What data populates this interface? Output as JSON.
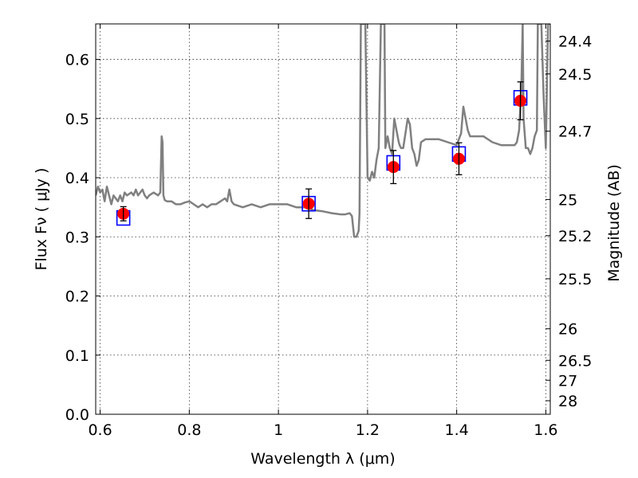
{
  "chart_data": {
    "type": "scatter",
    "xlabel": "Wavelength  λ (μm)",
    "ylabel": "Flux  Fν  ( μJy )",
    "ylabel_right": "Magnitude (AB)",
    "xlim": [
      0.59,
      1.61
    ],
    "ylim": [
      0.0,
      0.66
    ],
    "grid": true,
    "x_ticks": [
      "0.6",
      "0.8",
      "1",
      "1.2",
      "1.4",
      "1.6"
    ],
    "y_ticks": [
      "0.0",
      "0.1",
      "0.2",
      "0.3",
      "0.4",
      "0.5",
      "0.6"
    ],
    "right_ticks": [
      {
        "label": "24.4",
        "mag": 24.4
      },
      {
        "label": "24.5",
        "mag": 24.5
      },
      {
        "label": "24.7",
        "mag": 24.7
      },
      {
        "label": "25",
        "mag": 25.0
      },
      {
        "label": "25.2",
        "mag": 25.2
      },
      {
        "label": "25.5",
        "mag": 25.5
      },
      {
        "label": "26",
        "mag": 26.0
      },
      {
        "label": "26.5",
        "mag": 26.5
      },
      {
        "label": "27",
        "mag": 27.0
      },
      {
        "label": "28",
        "mag": 28.0
      }
    ],
    "series": [
      {
        "style": "model-line",
        "color": "#808080",
        "x": [
          0.59,
          0.595,
          0.6,
          0.605,
          0.61,
          0.615,
          0.62,
          0.625,
          0.63,
          0.635,
          0.64,
          0.645,
          0.65,
          0.655,
          0.66,
          0.67,
          0.675,
          0.68,
          0.685,
          0.69,
          0.695,
          0.7,
          0.705,
          0.71,
          0.72,
          0.73,
          0.735,
          0.738,
          0.74,
          0.742,
          0.745,
          0.75,
          0.76,
          0.77,
          0.78,
          0.79,
          0.8,
          0.81,
          0.82,
          0.83,
          0.84,
          0.85,
          0.86,
          0.87,
          0.88,
          0.885,
          0.89,
          0.895,
          0.9,
          0.92,
          0.94,
          0.96,
          0.98,
          1.0,
          1.02,
          1.04,
          1.06,
          1.08,
          1.1,
          1.12,
          1.14,
          1.15,
          1.16,
          1.165,
          1.17,
          1.175,
          1.18,
          1.182,
          1.185,
          1.188,
          1.19,
          1.193,
          1.195,
          1.2,
          1.205,
          1.21,
          1.215,
          1.22,
          1.225,
          1.23,
          1.232,
          1.235,
          1.238,
          1.24,
          1.245,
          1.25,
          1.255,
          1.26,
          1.265,
          1.27,
          1.272,
          1.275,
          1.28,
          1.29,
          1.295,
          1.3,
          1.305,
          1.31,
          1.315,
          1.32,
          1.33,
          1.34,
          1.36,
          1.38,
          1.4,
          1.41,
          1.415,
          1.42,
          1.425,
          1.43,
          1.44,
          1.46,
          1.48,
          1.5,
          1.52,
          1.53,
          1.535,
          1.54,
          1.545,
          1.548,
          1.55,
          1.555,
          1.56,
          1.565,
          1.57,
          1.575,
          1.58,
          1.582,
          1.585,
          1.59,
          1.595,
          1.6,
          1.605,
          1.61
        ],
        "y": [
          0.37,
          0.385,
          0.375,
          0.38,
          0.36,
          0.385,
          0.37,
          0.355,
          0.37,
          0.365,
          0.36,
          0.37,
          0.36,
          0.375,
          0.37,
          0.375,
          0.37,
          0.38,
          0.37,
          0.375,
          0.38,
          0.37,
          0.365,
          0.37,
          0.375,
          0.37,
          0.375,
          0.47,
          0.46,
          0.37,
          0.362,
          0.36,
          0.36,
          0.355,
          0.355,
          0.358,
          0.36,
          0.355,
          0.35,
          0.355,
          0.35,
          0.355,
          0.355,
          0.36,
          0.365,
          0.36,
          0.38,
          0.36,
          0.355,
          0.35,
          0.355,
          0.35,
          0.355,
          0.355,
          0.355,
          0.35,
          0.35,
          0.345,
          0.343,
          0.34,
          0.338,
          0.338,
          0.34,
          0.335,
          0.3,
          0.3,
          0.31,
          0.34,
          0.66,
          0.66,
          0.66,
          0.66,
          0.66,
          0.4,
          0.395,
          0.41,
          0.4,
          0.43,
          0.45,
          0.66,
          0.66,
          0.66,
          0.66,
          0.45,
          0.47,
          0.45,
          0.44,
          0.5,
          0.48,
          0.46,
          0.455,
          0.45,
          0.45,
          0.5,
          0.49,
          0.45,
          0.44,
          0.42,
          0.43,
          0.46,
          0.465,
          0.465,
          0.465,
          0.46,
          0.455,
          0.475,
          0.52,
          0.5,
          0.48,
          0.47,
          0.47,
          0.47,
          0.46,
          0.455,
          0.455,
          0.455,
          0.46,
          0.48,
          0.55,
          0.66,
          0.5,
          0.45,
          0.45,
          0.44,
          0.45,
          0.47,
          0.48,
          0.66,
          0.66,
          0.66,
          0.54,
          0.45,
          0.66,
          0.66
        ]
      },
      {
        "style": "model-squares",
        "color": "#0000ff",
        "x": [
          0.652,
          1.068,
          1.258,
          1.405,
          1.543
        ],
        "y": [
          0.332,
          0.356,
          0.425,
          0.44,
          0.535
        ]
      },
      {
        "style": "observed",
        "color": "#ff0000",
        "x": [
          0.652,
          1.068,
          1.258,
          1.405,
          1.543
        ],
        "y": [
          0.339,
          0.356,
          0.418,
          0.432,
          0.53
        ],
        "yerr": [
          0.012,
          0.025,
          0.028,
          0.027,
          0.032
        ]
      }
    ]
  }
}
